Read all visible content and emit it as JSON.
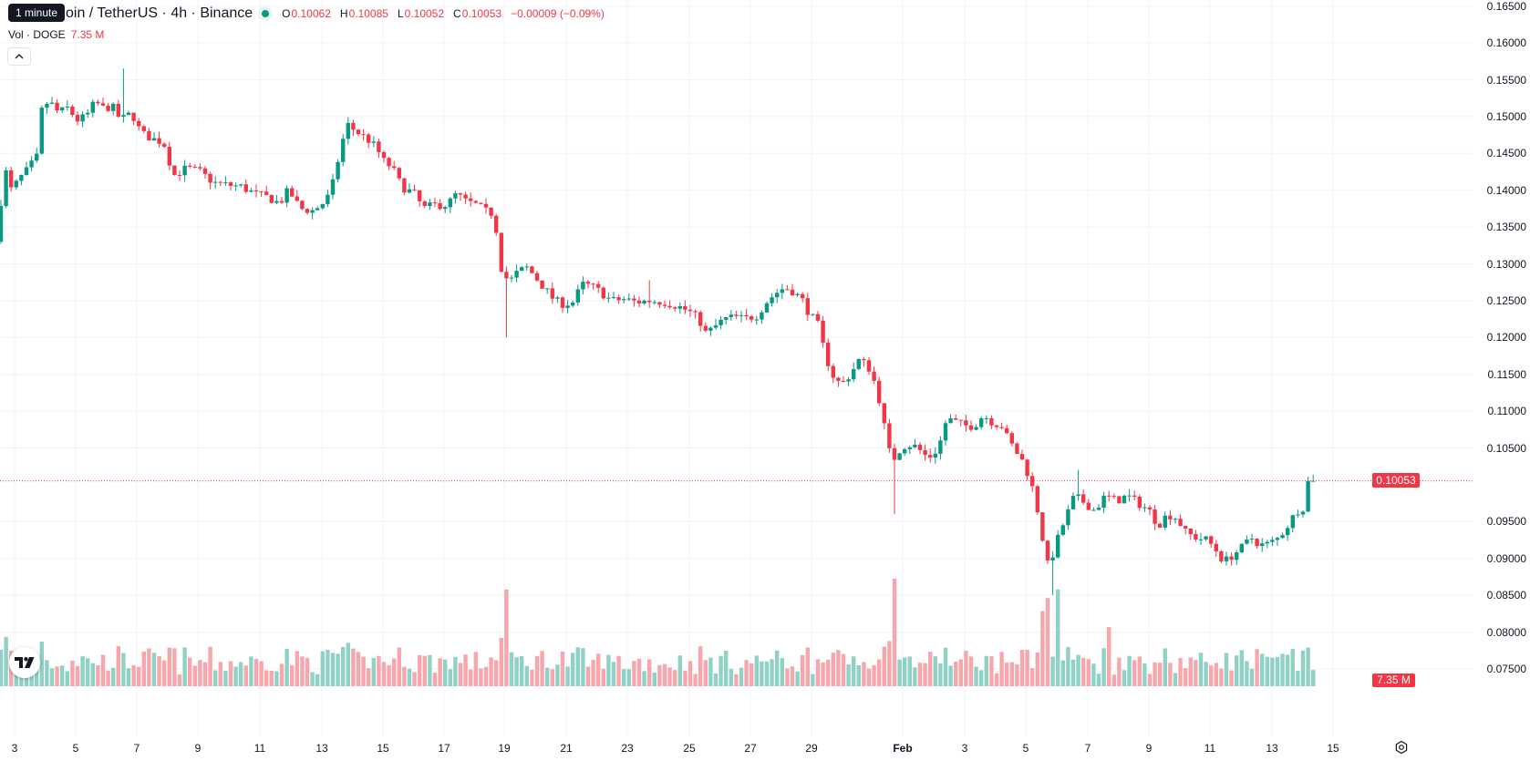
{
  "tooltip": "1 minute",
  "legend": {
    "title": "oin / TetherUS · 4h · Binance",
    "open_label": "O",
    "open": "0.10062",
    "high_label": "H",
    "high": "0.10085",
    "low_label": "L",
    "low": "0.10052",
    "close_label": "C",
    "close": "0.10053",
    "change": "−0.00009 (−0.09%)",
    "vol_label": "Vol · DOGE",
    "vol_value": "7.35 M"
  },
  "colors": {
    "up": "#089981",
    "down": "#f23645",
    "up_vol": "#8fd1c4",
    "down_vol": "#f7a6ab",
    "grid": "#f0f3fa"
  },
  "price_axis": {
    "labels": [
      "0.16500",
      "0.16000",
      "0.15500",
      "0.15000",
      "0.14500",
      "0.14000",
      "0.13500",
      "0.13000",
      "0.12500",
      "0.12000",
      "0.11500",
      "0.11000",
      "0.10500",
      "0.09500",
      "0.09000",
      "0.08500",
      "0.08000",
      "0.07500"
    ],
    "last_price": "0.10053",
    "last_volume": "7.35 M"
  },
  "time_axis": {
    "labels": [
      "3",
      "5",
      "7",
      "9",
      "11",
      "13",
      "15",
      "17",
      "19",
      "21",
      "23",
      "25",
      "27",
      "29",
      "Feb",
      "3",
      "5",
      "7",
      "9",
      "11",
      "13",
      "15"
    ]
  },
  "icons": {
    "logo": "tradingview-logo-icon",
    "settings": "settings-icon",
    "collapse": "chevron-up-icon"
  },
  "chart_data": {
    "type": "candlestick",
    "timeframe": "4h",
    "ylim": [
      0.0725,
      0.1665
    ],
    "last_price": 0.10053,
    "path": [
      [
        0,
        0.133
      ],
      [
        6,
        0.138
      ],
      [
        12,
        0.1425
      ],
      [
        18,
        0.14
      ],
      [
        24,
        0.141
      ],
      [
        30,
        0.142
      ],
      [
        36,
        0.1428
      ],
      [
        46,
        0.1445
      ],
      [
        52,
        0.1515
      ],
      [
        60,
        0.152
      ],
      [
        70,
        0.1505
      ],
      [
        80,
        0.1512
      ],
      [
        90,
        0.1495
      ],
      [
        100,
        0.15
      ],
      [
        110,
        0.152
      ],
      [
        120,
        0.151
      ],
      [
        128,
        0.1515
      ],
      [
        138,
        0.1495
      ],
      [
        150,
        0.1505
      ],
      [
        160,
        0.1478
      ],
      [
        172,
        0.147
      ],
      [
        185,
        0.1465
      ],
      [
        196,
        0.142
      ],
      [
        210,
        0.143
      ],
      [
        225,
        0.1425
      ],
      [
        240,
        0.141
      ],
      [
        255,
        0.1407
      ],
      [
        270,
        0.1405
      ],
      [
        285,
        0.1395
      ],
      [
        300,
        0.139
      ],
      [
        312,
        0.1382
      ],
      [
        322,
        0.14
      ],
      [
        335,
        0.1375
      ],
      [
        348,
        0.1372
      ],
      [
        358,
        0.138
      ],
      [
        368,
        0.1395
      ],
      [
        378,
        0.145
      ],
      [
        386,
        0.149
      ],
      [
        396,
        0.148
      ],
      [
        408,
        0.147
      ],
      [
        418,
        0.1458
      ],
      [
        426,
        0.144
      ],
      [
        436,
        0.143
      ],
      [
        446,
        0.1405
      ],
      [
        460,
        0.1395
      ],
      [
        470,
        0.1375
      ],
      [
        482,
        0.138
      ],
      [
        496,
        0.138
      ],
      [
        506,
        0.1395
      ],
      [
        516,
        0.1385
      ],
      [
        528,
        0.138
      ],
      [
        540,
        0.137
      ],
      [
        548,
        0.1368
      ],
      [
        552,
        0.132
      ],
      [
        556,
        0.129
      ],
      [
        564,
        0.1275
      ],
      [
        574,
        0.129
      ],
      [
        584,
        0.1295
      ],
      [
        594,
        0.128
      ],
      [
        604,
        0.1265
      ],
      [
        614,
        0.125
      ],
      [
        624,
        0.1245
      ],
      [
        634,
        0.1248
      ],
      [
        644,
        0.1272
      ],
      [
        654,
        0.127
      ],
      [
        664,
        0.1262
      ],
      [
        676,
        0.125
      ],
      [
        690,
        0.1252
      ],
      [
        704,
        0.1248
      ],
      [
        718,
        0.125
      ],
      [
        734,
        0.1248
      ],
      [
        750,
        0.1242
      ],
      [
        762,
        0.1235
      ],
      [
        772,
        0.1225
      ],
      [
        780,
        0.1205
      ],
      [
        790,
        0.1215
      ],
      [
        800,
        0.1225
      ],
      [
        812,
        0.1228
      ],
      [
        822,
        0.1225
      ],
      [
        836,
        0.123
      ],
      [
        846,
        0.1248
      ],
      [
        856,
        0.126
      ],
      [
        866,
        0.1268
      ],
      [
        876,
        0.1262
      ],
      [
        886,
        0.125
      ],
      [
        894,
        0.123
      ],
      [
        902,
        0.122
      ],
      [
        910,
        0.118
      ],
      [
        918,
        0.115
      ],
      [
        928,
        0.1135
      ],
      [
        938,
        0.115
      ],
      [
        948,
        0.117
      ],
      [
        958,
        0.116
      ],
      [
        966,
        0.1135
      ],
      [
        972,
        0.1105
      ],
      [
        978,
        0.106
      ],
      [
        984,
        0.103
      ],
      [
        990,
        0.1045
      ],
      [
        1000,
        0.1055
      ],
      [
        1010,
        0.1052
      ],
      [
        1020,
        0.104
      ],
      [
        1028,
        0.1038
      ],
      [
        1036,
        0.1055
      ],
      [
        1044,
        0.109
      ],
      [
        1054,
        0.1085
      ],
      [
        1064,
        0.108
      ],
      [
        1074,
        0.108
      ],
      [
        1084,
        0.1095
      ],
      [
        1094,
        0.1085
      ],
      [
        1104,
        0.108
      ],
      [
        1112,
        0.106
      ],
      [
        1120,
        0.1045
      ],
      [
        1128,
        0.103
      ],
      [
        1136,
        0.1005
      ],
      [
        1142,
        0.0975
      ],
      [
        1148,
        0.0935
      ],
      [
        1154,
        0.089
      ],
      [
        1160,
        0.0905
      ],
      [
        1168,
        0.0935
      ],
      [
        1176,
        0.096
      ],
      [
        1184,
        0.0985
      ],
      [
        1196,
        0.0975
      ],
      [
        1206,
        0.0965
      ],
      [
        1218,
        0.0985
      ],
      [
        1230,
        0.0978
      ],
      [
        1242,
        0.0985
      ],
      [
        1254,
        0.0975
      ],
      [
        1266,
        0.0965
      ],
      [
        1276,
        0.0945
      ],
      [
        1286,
        0.096
      ],
      [
        1296,
        0.0955
      ],
      [
        1306,
        0.0935
      ],
      [
        1318,
        0.0928
      ],
      [
        1330,
        0.0925
      ],
      [
        1340,
        0.091
      ],
      [
        1348,
        0.0895
      ],
      [
        1358,
        0.0905
      ],
      [
        1368,
        0.0915
      ],
      [
        1378,
        0.0928
      ],
      [
        1388,
        0.0918
      ],
      [
        1398,
        0.092
      ],
      [
        1408,
        0.0928
      ],
      [
        1418,
        0.0945
      ],
      [
        1428,
        0.0965
      ],
      [
        1436,
        0.097
      ],
      [
        1440,
        0.0968
      ],
      [
        1445,
        0.1005
      ]
    ],
    "spikes": [
      {
        "x": 134,
        "high": 0.1565
      },
      {
        "x": 555,
        "low": 0.12
      },
      {
        "x": 712,
        "high": 0.1278
      },
      {
        "x": 981,
        "low": 0.096
      },
      {
        "x": 1157,
        "low": 0.085
      },
      {
        "x": 1184,
        "high": 0.102
      }
    ],
    "volume_spikes": [
      {
        "x": 553,
        "v": 0.9
      },
      {
        "x": 980,
        "v": 1.0
      },
      {
        "x": 1142,
        "v": 0.7
      },
      {
        "x": 1150,
        "v": 0.82
      },
      {
        "x": 1160,
        "v": 0.9
      },
      {
        "x": 1215,
        "v": 0.55
      }
    ]
  }
}
